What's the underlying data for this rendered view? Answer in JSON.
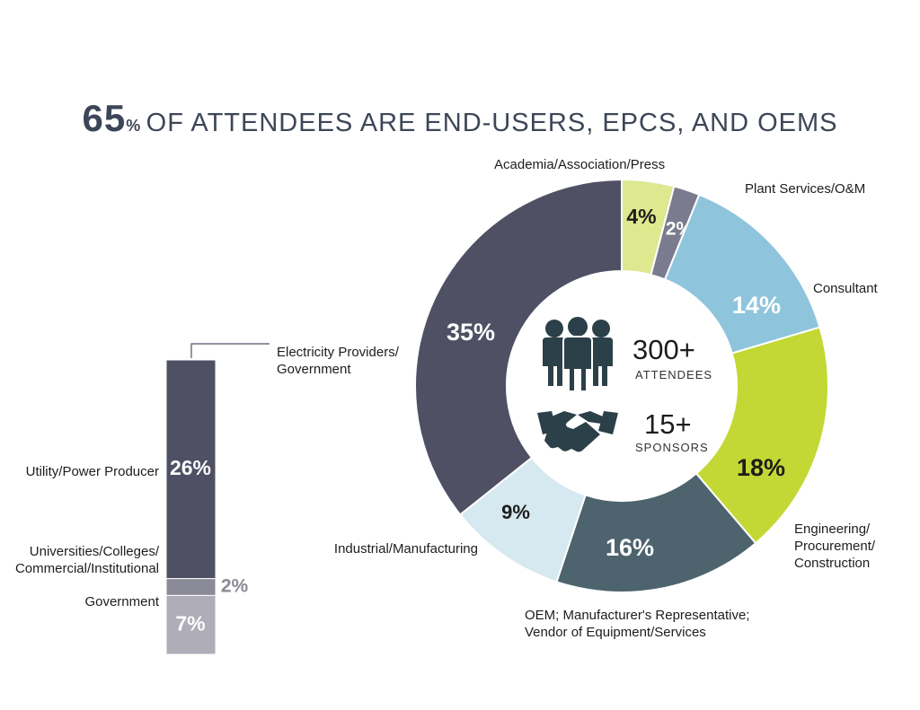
{
  "headline": {
    "highlight": "65",
    "highlight_unit": "%",
    "text": "of attendees are end-users, EPCs, and OEMs"
  },
  "center": {
    "attendees_count": "300+",
    "attendees_label": "ATTENDEES",
    "sponsors_count": "15+",
    "sponsors_label": "SPONSORS",
    "icons": [
      "people-group-icon",
      "handshake-icon"
    ]
  },
  "chart_data": [
    {
      "type": "pie",
      "variant": "donut",
      "series": [
        {
          "label": "Academia/Association/Press",
          "value": 4,
          "display": "4%",
          "color": "#dde88f",
          "label_color": "#1d1d1b"
        },
        {
          "label": "Plant Services/O&M",
          "value": 2,
          "display": "2%",
          "color": "#7b7b8f",
          "label_color": "#ffffff"
        },
        {
          "label": "Consultant",
          "value": 14,
          "display": "14%",
          "color": "#8ec5dc",
          "label_color": "#ffffff"
        },
        {
          "label": "Engineering/\nProcurement/\nConstruction",
          "value": 18,
          "display": "18%",
          "color": "#c3d834",
          "label_color": "#1d1d1b"
        },
        {
          "label": "OEM; Manufacturer's Representative;\nVendor of Equipment/Services",
          "value": 16,
          "display": "16%",
          "color": "#4d636d",
          "label_color": "#ffffff"
        },
        {
          "label": "Industrial/Manufacturing",
          "value": 9,
          "display": "9%",
          "color": "#d6e8f0",
          "label_color": "#1d1d1b"
        },
        {
          "label": "Electricity Providers/\nGovernment",
          "value": 35,
          "display": "35%",
          "color": "#4f5064",
          "label_color": "#ffffff"
        }
      ]
    },
    {
      "type": "bar",
      "variant": "stacked-column",
      "title": "Electricity Providers/\nGovernment",
      "series": [
        {
          "label": "Utility/Power Producer",
          "value": 26,
          "display": "26%",
          "color": "#4f5064",
          "label_color": "#ffffff"
        },
        {
          "label": "Universities/Colleges/\nCommercial/Institutional",
          "value": 2,
          "display": "2%",
          "color": "#8a8a99",
          "label_color": "#8a8a99"
        },
        {
          "label": "Government",
          "value": 7,
          "display": "7%",
          "color": "#aeadb8",
          "label_color": "#ffffff"
        }
      ]
    }
  ]
}
